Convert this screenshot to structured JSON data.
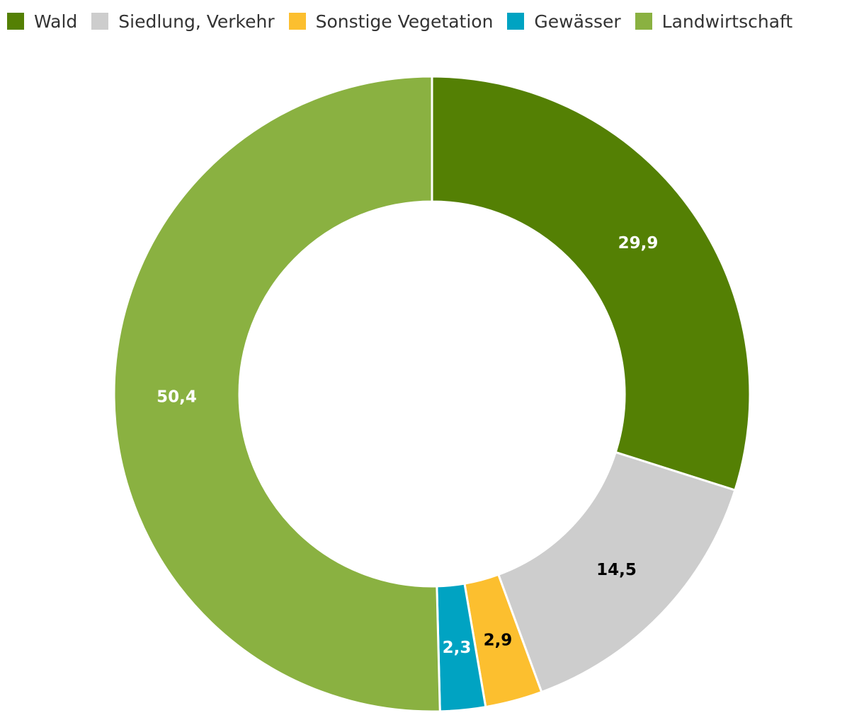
{
  "chart_data": {
    "type": "pie",
    "variant": "donut",
    "title": "",
    "legend_position": "top-left",
    "start_angle_deg": 0,
    "direction": "clockwise",
    "slices": [
      {
        "name": "Wald",
        "value": 29.9,
        "label": "29,9",
        "color": "#548004",
        "label_color": "#ffffff"
      },
      {
        "name": "Siedlung, Verkehr",
        "value": 14.5,
        "label": "14,5",
        "color": "#cdcdcd",
        "label_color": "#000000"
      },
      {
        "name": "Sonstige Vegetation",
        "value": 2.9,
        "label": "2,9",
        "color": "#fcbf2f",
        "label_color": "#000000"
      },
      {
        "name": "Gewässer",
        "value": 2.3,
        "label": "2,3",
        "color": "#00a3c2",
        "label_color": "#ffffff"
      },
      {
        "name": "Landwirtschaft",
        "value": 50.4,
        "label": "50,4",
        "color": "#8ab141",
        "label_color": "#ffffff"
      }
    ]
  }
}
